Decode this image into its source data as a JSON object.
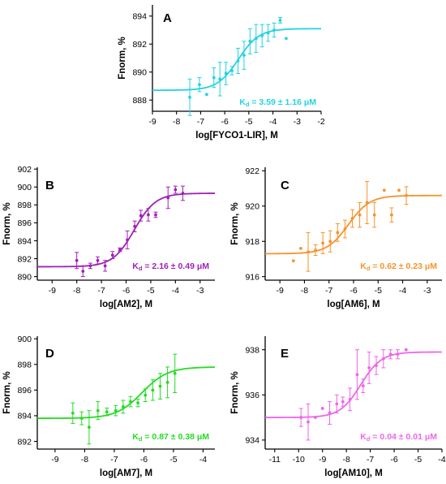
{
  "colors": {
    "A": "#22d3e0",
    "B": "#a020b8",
    "C": "#f7922a",
    "D": "#22dd22",
    "E": "#ee66e8",
    "axis": "#000000"
  },
  "chart_data": [
    {
      "id": "A",
      "type": "scatter",
      "panel_label": "A",
      "xlabel": "log[FYCO1-LIR], M",
      "ylabel": "Fnorm, %",
      "xlim": [
        -9,
        -2
      ],
      "ylim": [
        887.2,
        894.8
      ],
      "xticks": [
        -9,
        -8,
        -7,
        -6,
        -5,
        -4,
        -3,
        -2
      ],
      "yticks": [
        888,
        890,
        892,
        894
      ],
      "kd_text": "Kd = 3.59 ± 1.16 μM",
      "kd_prefix": "K",
      "kd_sub": "d",
      "kd_value": " = 3.59 ± 1.16 μM",
      "fit": {
        "bottom": 888.7,
        "top": 893.1,
        "log_kd": -5.44,
        "hill": 1
      },
      "points": [
        {
          "x": -7.45,
          "y": 888.2,
          "err": 1.3
        },
        {
          "x": -7.05,
          "y": 889.1,
          "err": 0.5
        },
        {
          "x": -6.75,
          "y": 888.4,
          "err": 0
        },
        {
          "x": -6.45,
          "y": 889.6,
          "err": 0.7
        },
        {
          "x": -6.2,
          "y": 889.5,
          "err": 1.2
        },
        {
          "x": -5.95,
          "y": 889.9,
          "err": 0.8
        },
        {
          "x": -5.7,
          "y": 890.1,
          "err": 0.3
        },
        {
          "x": -5.45,
          "y": 890.8,
          "err": 0.9
        },
        {
          "x": -5.2,
          "y": 891.2,
          "err": 1.0
        },
        {
          "x": -4.95,
          "y": 892.2,
          "err": 0.9
        },
        {
          "x": -4.7,
          "y": 892.4,
          "err": 1.0
        },
        {
          "x": -4.45,
          "y": 892.6,
          "err": 0.8
        },
        {
          "x": -4.2,
          "y": 892.8,
          "err": 0.6
        },
        {
          "x": -3.95,
          "y": 893.0,
          "err": 0.5
        },
        {
          "x": -3.7,
          "y": 893.7,
          "err": 0.2
        },
        {
          "x": -3.45,
          "y": 892.4,
          "err": 0
        }
      ]
    },
    {
      "id": "B",
      "type": "scatter",
      "panel_label": "B",
      "xlabel": "log[AM2], M",
      "ylabel": "Fnorm, %",
      "xlim": [
        -9.6,
        -2.4
      ],
      "ylim": [
        889.6,
        902.2
      ],
      "xticks": [
        -9,
        -8,
        -7,
        -6,
        -5,
        -4,
        -3
      ],
      "yticks": [
        890,
        892,
        894,
        896,
        898,
        900,
        902
      ],
      "kd_prefix": "K",
      "kd_sub": "d",
      "kd_value": " = 2.16 ± 0.49 μM",
      "fit": {
        "bottom": 891.1,
        "top": 899.3,
        "log_kd": -5.67,
        "hill": 1
      },
      "points": [
        {
          "x": -8.0,
          "y": 891.8,
          "err": 0.9
        },
        {
          "x": -7.75,
          "y": 890.6,
          "err": 0.6
        },
        {
          "x": -7.45,
          "y": 891.2,
          "err": 0.3
        },
        {
          "x": -7.15,
          "y": 891.8,
          "err": 0.4
        },
        {
          "x": -6.85,
          "y": 891.2,
          "err": 0.6
        },
        {
          "x": -6.55,
          "y": 892.4,
          "err": 0.4
        },
        {
          "x": -6.25,
          "y": 893.0,
          "err": 0.2
        },
        {
          "x": -5.95,
          "y": 894.1,
          "err": 1.0
        },
        {
          "x": -5.65,
          "y": 895.6,
          "err": 0.6
        },
        {
          "x": -5.4,
          "y": 896.8,
          "err": 0.6
        },
        {
          "x": -5.1,
          "y": 896.9,
          "err": 0.7
        },
        {
          "x": -4.8,
          "y": 896.9,
          "err": 0.3
        },
        {
          "x": -4.3,
          "y": 898.8,
          "err": 1.2
        },
        {
          "x": -4.0,
          "y": 899.7,
          "err": 0.4
        },
        {
          "x": -3.7,
          "y": 899.3,
          "err": 0.8
        }
      ]
    },
    {
      "id": "C",
      "type": "scatter",
      "panel_label": "C",
      "xlabel": "log[AM6], M",
      "ylabel": "Fnorm, %",
      "xlim": [
        -9.6,
        -2.4
      ],
      "ylim": [
        915.8,
        922.2
      ],
      "xticks": [
        -9,
        -8,
        -7,
        -6,
        -5,
        -4,
        -3
      ],
      "yticks": [
        916,
        918,
        920,
        922
      ],
      "kd_prefix": "K",
      "kd_sub": "d",
      "kd_value": " = 0.62 ± 0.23 μM",
      "fit": {
        "bottom": 917.3,
        "top": 920.6,
        "log_kd": -6.21,
        "hill": 1
      },
      "points": [
        {
          "x": -8.45,
          "y": 916.9,
          "err": 0
        },
        {
          "x": -8.15,
          "y": 917.6,
          "err": 0
        },
        {
          "x": -7.85,
          "y": 917.4,
          "err": 1.1
        },
        {
          "x": -7.55,
          "y": 917.5,
          "err": 0.3
        },
        {
          "x": -7.25,
          "y": 917.9,
          "err": 0.6
        },
        {
          "x": -6.95,
          "y": 918.0,
          "err": 0.6
        },
        {
          "x": -6.65,
          "y": 918.5,
          "err": 0.5
        },
        {
          "x": -6.35,
          "y": 918.7,
          "err": 0.5
        },
        {
          "x": -6.05,
          "y": 919.3,
          "err": 0.5
        },
        {
          "x": -5.75,
          "y": 919.5,
          "err": 0.7
        },
        {
          "x": -5.45,
          "y": 920.2,
          "err": 1.2
        },
        {
          "x": -5.15,
          "y": 919.5,
          "err": 0.7
        },
        {
          "x": -4.75,
          "y": 920.9,
          "err": 0
        },
        {
          "x": -4.45,
          "y": 919.5,
          "err": 0.4
        },
        {
          "x": -4.15,
          "y": 920.9,
          "err": 0
        },
        {
          "x": -3.85,
          "y": 920.6,
          "err": 0.5
        }
      ]
    },
    {
      "id": "D",
      "type": "scatter",
      "panel_label": "D",
      "xlabel": "log[AM7], M",
      "ylabel": "Fnorm, %",
      "xlim": [
        -9.6,
        -3.6
      ],
      "ylim": [
        891.4,
        900.2
      ],
      "xticks": [
        -9,
        -8,
        -7,
        -6,
        -5,
        -4
      ],
      "yticks": [
        892,
        894,
        896,
        898,
        900
      ],
      "kd_prefix": "K",
      "kd_sub": "d",
      "kd_value": " = 0.87 ± 0.38 μM",
      "fit": {
        "bottom": 893.8,
        "top": 897.8,
        "log_kd": -6.06,
        "hill": 1
      },
      "points": [
        {
          "x": -8.4,
          "y": 894.2,
          "err": 0.8
        },
        {
          "x": -8.1,
          "y": 893.8,
          "err": 0.5
        },
        {
          "x": -7.85,
          "y": 893.1,
          "err": 1.3
        },
        {
          "x": -7.55,
          "y": 894.4,
          "err": 0.7
        },
        {
          "x": -7.25,
          "y": 894.3,
          "err": 0.3
        },
        {
          "x": -6.95,
          "y": 894.4,
          "err": 0.4
        },
        {
          "x": -6.7,
          "y": 894.7,
          "err": 0.5
        },
        {
          "x": -6.45,
          "y": 895.1,
          "err": 0.4
        },
        {
          "x": -6.2,
          "y": 895.0,
          "err": 0.3
        },
        {
          "x": -5.95,
          "y": 895.6,
          "err": 0.5
        },
        {
          "x": -5.7,
          "y": 896.0,
          "err": 0.8
        },
        {
          "x": -5.45,
          "y": 896.3,
          "err": 1.0
        },
        {
          "x": -5.2,
          "y": 896.6,
          "err": 1.2
        },
        {
          "x": -4.95,
          "y": 897.3,
          "err": 1.5
        }
      ]
    },
    {
      "id": "E",
      "type": "scatter",
      "panel_label": "E",
      "xlabel": "log[AM10], M",
      "ylabel": "Fnorm, %",
      "xlim": [
        -11.4,
        -4.0
      ],
      "ylim": [
        933.6,
        938.6
      ],
      "xticks": [
        -11,
        -10,
        -9,
        -8,
        -7,
        -6,
        -5,
        -4
      ],
      "yticks": [
        934,
        936,
        938
      ],
      "kd_prefix": "K",
      "kd_sub": "d",
      "kd_value": " = 0.04 ± 0.01 μM",
      "fit": {
        "bottom": 935.0,
        "top": 937.9,
        "log_kd": -7.4,
        "hill": 1
      },
      "points": [
        {
          "x": -9.9,
          "y": 935.0,
          "err": 0.4
        },
        {
          "x": -9.6,
          "y": 934.8,
          "err": 0.8
        },
        {
          "x": -9.3,
          "y": 935.0,
          "err": 0
        },
        {
          "x": -9.0,
          "y": 935.4,
          "err": 0
        },
        {
          "x": -8.7,
          "y": 935.2,
          "err": 0.5
        },
        {
          "x": -8.4,
          "y": 935.6,
          "err": 0.4
        },
        {
          "x": -8.15,
          "y": 935.7,
          "err": 0.2
        },
        {
          "x": -7.85,
          "y": 935.8,
          "err": 0.5
        },
        {
          "x": -7.55,
          "y": 936.9,
          "err": 1.1
        },
        {
          "x": -7.3,
          "y": 936.4,
          "err": 0.3
        },
        {
          "x": -7.05,
          "y": 937.2,
          "err": 0.7
        },
        {
          "x": -6.75,
          "y": 937.3,
          "err": 0.4
        },
        {
          "x": -6.45,
          "y": 937.6,
          "err": 0.4
        },
        {
          "x": -6.15,
          "y": 937.8,
          "err": 0.2
        },
        {
          "x": -5.85,
          "y": 937.8,
          "err": 0.2
        },
        {
          "x": -5.5,
          "y": 938.0,
          "err": 0
        }
      ]
    }
  ]
}
